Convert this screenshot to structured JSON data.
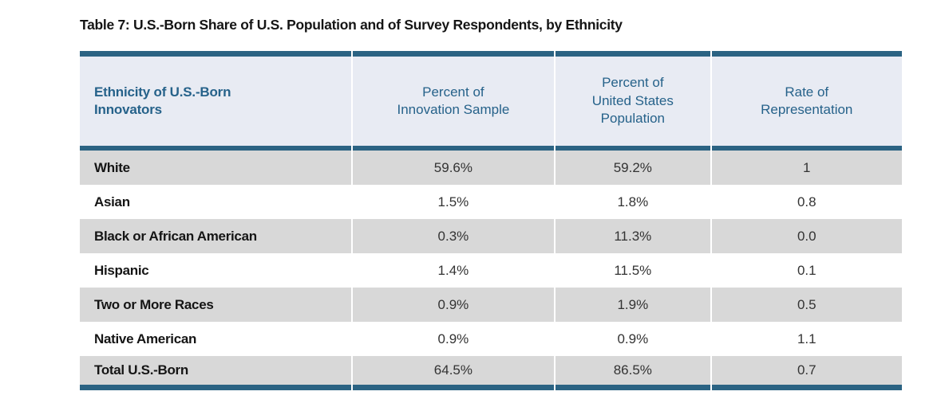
{
  "title": "Table 7: U.S.-Born Share of U.S. Population and of Survey Respondents, by Ethnicity",
  "colors": {
    "border_accent": "#2b6383",
    "header_background": "#e8ebf3",
    "header_text": "#26628a",
    "row_stripe": "#d8d8d8",
    "body_text": "#333333",
    "label_text": "#151515"
  },
  "table": {
    "columns": [
      {
        "id": "ethnicity",
        "label": "Ethnicity of U.S.-Born\nInnovators"
      },
      {
        "id": "innovation_sample",
        "label": "Percent of\nInnovation Sample"
      },
      {
        "id": "us_population",
        "label": "Percent of\nUnited States\nPopulation"
      },
      {
        "id": "rate",
        "label": "Rate of\nRepresentation"
      }
    ],
    "rows": [
      {
        "ethnicity": "White",
        "innovation_sample": "59.6%",
        "us_population": "59.2%",
        "rate": "1"
      },
      {
        "ethnicity": "Asian",
        "innovation_sample": "1.5%",
        "us_population": "1.8%",
        "rate": "0.8"
      },
      {
        "ethnicity": "Black or African American",
        "innovation_sample": "0.3%",
        "us_population": "11.3%",
        "rate": "0.0"
      },
      {
        "ethnicity": "Hispanic",
        "innovation_sample": "1.4%",
        "us_population": "11.5%",
        "rate": "0.1"
      },
      {
        "ethnicity": "Two or More Races",
        "innovation_sample": "0.9%",
        "us_population": "1.9%",
        "rate": "0.5"
      },
      {
        "ethnicity": "Native American",
        "innovation_sample": "0.9%",
        "us_population": "0.9%",
        "rate": "1.1"
      },
      {
        "ethnicity": "Total U.S.-Born",
        "innovation_sample": "64.5%",
        "us_population": "86.5%",
        "rate": "0.7"
      }
    ]
  }
}
